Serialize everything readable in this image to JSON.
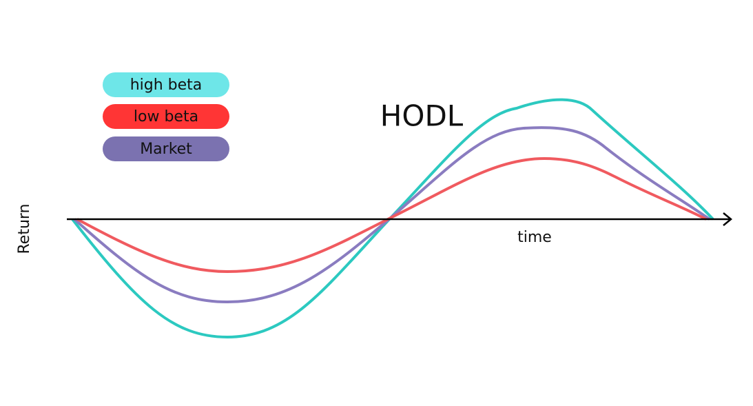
{
  "title": "HODL",
  "legend": {
    "items": [
      "high beta",
      "low beta",
      "Market"
    ]
  },
  "axes": {
    "y_label": "Return",
    "x_label": "time"
  }
}
